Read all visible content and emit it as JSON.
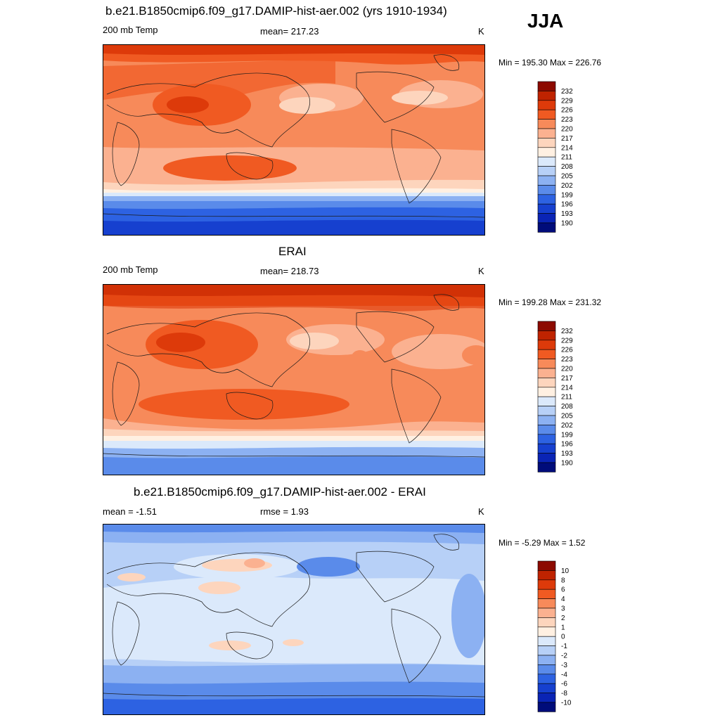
{
  "season": "JJA",
  "panels": [
    {
      "title": "b.e21.B1850cmip6.f09_g17.DAMIP-hist-aer.002 (yrs 1910-1934)",
      "left_label": "200 mb Temp",
      "center_label": "mean= 217.23",
      "units": "K",
      "minmax": "Min = 195.30 Max = 226.76",
      "colorbar": {
        "labels": [
          "232",
          "229",
          "226",
          "223",
          "220",
          "217",
          "214",
          "211",
          "208",
          "205",
          "202",
          "199",
          "196",
          "193",
          "190"
        ],
        "colors": [
          "#8c0a00",
          "#bf2300",
          "#dd3a0a",
          "#f05a22",
          "#f78a5a",
          "#fbb190",
          "#fdd5bd",
          "#fff0e2",
          "#dbe9fb",
          "#b7d0f7",
          "#8cb1f2",
          "#5a8bea",
          "#2d62e2",
          "#1640cf",
          "#0a24b5",
          "#000c7a"
        ]
      }
    },
    {
      "title": "ERAI",
      "left_label": "200 mb Temp",
      "center_label": "mean= 218.73",
      "units": "K",
      "minmax": "Min = 199.28 Max = 231.32",
      "colorbar": {
        "labels": [
          "232",
          "229",
          "226",
          "223",
          "220",
          "217",
          "214",
          "211",
          "208",
          "205",
          "202",
          "199",
          "196",
          "193",
          "190"
        ],
        "colors": [
          "#8c0a00",
          "#bf2300",
          "#dd3a0a",
          "#f05a22",
          "#f78a5a",
          "#fbb190",
          "#fdd5bd",
          "#fff0e2",
          "#dbe9fb",
          "#b7d0f7",
          "#8cb1f2",
          "#5a8bea",
          "#2d62e2",
          "#1640cf",
          "#0a24b5",
          "#000c7a"
        ]
      }
    },
    {
      "title": "b.e21.B1850cmip6.f09_g17.DAMIP-hist-aer.002 - ERAI",
      "left_label": "mean =  -1.51",
      "center_label": "rmse =   1.93",
      "units": "K",
      "minmax": "Min =  -5.29 Max =   1.52",
      "colorbar": {
        "labels": [
          "10",
          "8",
          "6",
          "4",
          "3",
          "2",
          "1",
          "0",
          "-1",
          "-2",
          "-3",
          "-4",
          "-6",
          "-8",
          "-10"
        ],
        "colors": [
          "#8c0a00",
          "#bf2300",
          "#dd3a0a",
          "#f05a22",
          "#f78a5a",
          "#fbb190",
          "#fdd5bd",
          "#fff0e2",
          "#dbe9fb",
          "#b7d0f7",
          "#8cb1f2",
          "#5a8bea",
          "#2d62e2",
          "#1640cf",
          "#0a24b5",
          "#000c7a"
        ]
      }
    }
  ]
}
